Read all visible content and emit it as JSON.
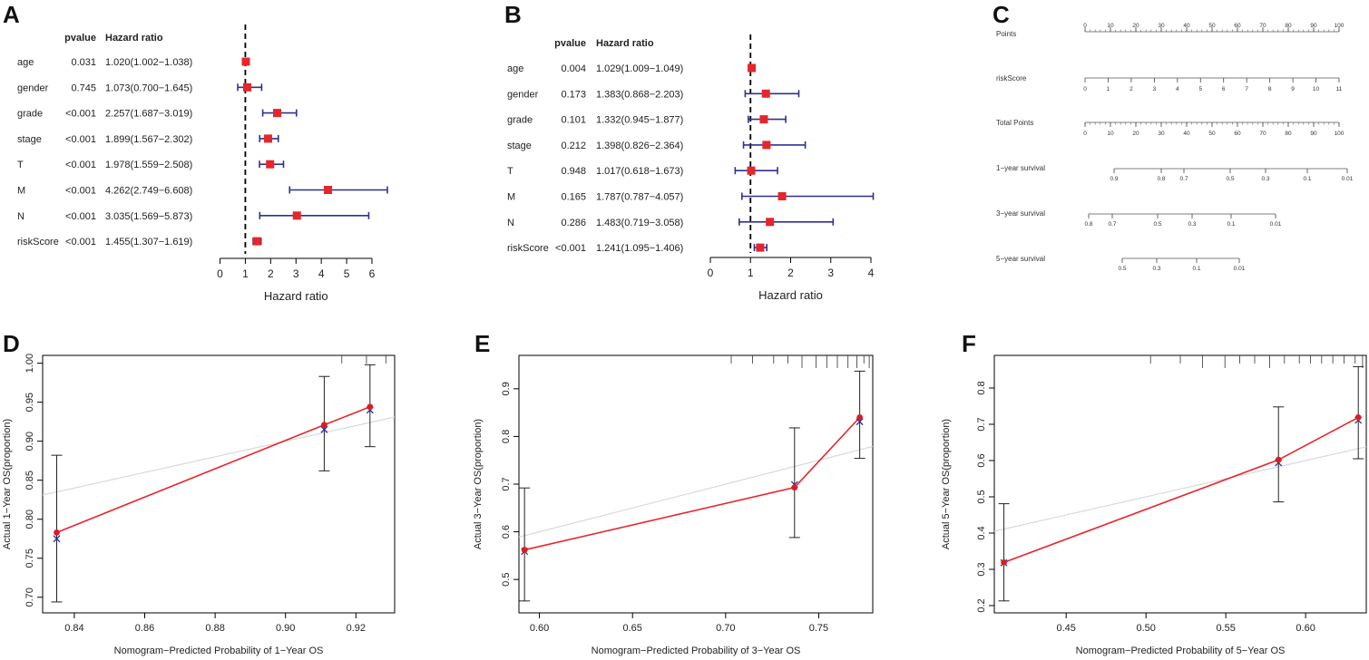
{
  "figure": {
    "forests": [
      {
        "panel": "A",
        "header_pvalue": "pvalue",
        "header_hr": "Hazard ratio",
        "xlabel": "Hazard ratio",
        "rows": [
          {
            "name": "age",
            "pvalue": "0.031",
            "hr_text": "1.020(1.002−1.038)"
          },
          {
            "name": "gender",
            "pvalue": "0.745",
            "hr_text": "1.073(0.700−1.645)"
          },
          {
            "name": "grade",
            "pvalue": "<0.001",
            "hr_text": "2.257(1.687−3.019)"
          },
          {
            "name": "stage",
            "pvalue": "<0.001",
            "hr_text": "1.899(1.567−2.302)"
          },
          {
            "name": "T",
            "pvalue": "<0.001",
            "hr_text": "1.978(1.559−2.508)"
          },
          {
            "name": "M",
            "pvalue": "<0.001",
            "hr_text": "4.262(2.749−6.608)"
          },
          {
            "name": "N",
            "pvalue": "<0.001",
            "hr_text": "3.035(1.569−5.873)"
          },
          {
            "name": "riskScore",
            "pvalue": "<0.001",
            "hr_text": "1.455(1.307−1.619)"
          }
        ],
        "ticks": [
          "0",
          "1",
          "2",
          "3",
          "4",
          "5",
          "6"
        ]
      },
      {
        "panel": "B",
        "header_pvalue": "pvalue",
        "header_hr": "Hazard ratio",
        "xlabel": "Hazard ratio",
        "rows": [
          {
            "name": "age",
            "pvalue": "0.004",
            "hr_text": "1.029(1.009−1.049)"
          },
          {
            "name": "gender",
            "pvalue": "0.173",
            "hr_text": "1.383(0.868−2.203)"
          },
          {
            "name": "grade",
            "pvalue": "0.101",
            "hr_text": "1.332(0.945−1.877)"
          },
          {
            "name": "stage",
            "pvalue": "0.212",
            "hr_text": "1.398(0.826−2.364)"
          },
          {
            "name": "T",
            "pvalue": "0.948",
            "hr_text": "1.017(0.618−1.673)"
          },
          {
            "name": "M",
            "pvalue": "0.165",
            "hr_text": "1.787(0.787−4.057)"
          },
          {
            "name": "N",
            "pvalue": "0.286",
            "hr_text": "1.483(0.719−3.058)"
          },
          {
            "name": "riskScore",
            "pvalue": "<0.001",
            "hr_text": "1.241(1.095−1.406)"
          }
        ],
        "ticks": [
          "0",
          "1",
          "2",
          "3",
          "4"
        ]
      }
    ],
    "nomogram": {
      "panel": "C",
      "rows": [
        {
          "label": "Points",
          "ticks": [
            "0",
            "10",
            "20",
            "30",
            "40",
            "50",
            "60",
            "70",
            "80",
            "90",
            "100"
          ],
          "labels_above": true
        },
        {
          "label": "riskScore",
          "ticks": [
            "0",
            "1",
            "2",
            "3",
            "4",
            "5",
            "6",
            "7",
            "8",
            "9",
            "10",
            "11"
          ],
          "labels_above": false
        },
        {
          "label": "Total Points",
          "ticks": [
            "0",
            "10",
            "20",
            "30",
            "40",
            "50",
            "60",
            "70",
            "80",
            "90",
            "100"
          ],
          "labels_above": false
        },
        {
          "label": "1−year survival",
          "ticks": [
            "0.9",
            "0.8",
            "0.7",
            "0.5",
            "0.3",
            "0.1",
            "0.01"
          ],
          "labels_above": false
        },
        {
          "label": "3−year survival",
          "ticks": [
            "0.8",
            "0.7",
            "0.5",
            "0.3",
            "0.1",
            "0.01"
          ],
          "labels_above": false
        },
        {
          "label": "5−year survival",
          "ticks": [
            "0.5",
            "0.3",
            "0.1",
            "0.01"
          ],
          "labels_above": false
        }
      ]
    },
    "calibrations": [
      {
        "panel": "D",
        "ylabel": "Actual 1−Year OS(proportion)",
        "xlabel": "Nomogram−Predicted Probability of 1−Year OS",
        "xticks": [
          "0.84",
          "0.86",
          "0.88",
          "0.90",
          "0.92"
        ],
        "yticks": [
          "0.70",
          "0.75",
          "0.80",
          "0.85",
          "0.90",
          "0.95",
          "1.00"
        ]
      },
      {
        "panel": "E",
        "ylabel": "Actual 3−Year OS(proportion)",
        "xlabel": "Nomogram−Predicted Probability of 3−Year OS",
        "xticks": [
          "0.60",
          "0.65",
          "0.70",
          "0.75"
        ],
        "yticks": [
          "0.5",
          "0.6",
          "0.7",
          "0.8",
          "0.9"
        ]
      },
      {
        "panel": "F",
        "ylabel": "Actual 5−Year OS(proportion)",
        "xlabel": "Nomogram−Predicted Probability of 5−Year OS",
        "xticks": [
          "0.45",
          "0.50",
          "0.55",
          "0.60"
        ],
        "yticks": [
          "0.2",
          "0.3",
          "0.4",
          "0.5",
          "0.6",
          "0.7",
          "0.8"
        ]
      }
    ]
  },
  "chart_data": [
    {
      "type": "forest",
      "title": "A",
      "xlabel": "Hazard ratio",
      "xlim": [
        0,
        6
      ],
      "categories": [
        "age",
        "gender",
        "grade",
        "stage",
        "T",
        "M",
        "N",
        "riskScore"
      ],
      "hr": [
        1.02,
        1.073,
        2.257,
        1.899,
        1.978,
        4.262,
        3.035,
        1.455
      ],
      "lower": [
        1.002,
        0.7,
        1.687,
        1.567,
        1.559,
        2.749,
        1.569,
        1.307
      ],
      "upper": [
        1.038,
        1.645,
        3.019,
        2.302,
        2.508,
        6.608,
        5.873,
        1.619
      ],
      "reference": 1
    },
    {
      "type": "forest",
      "title": "B",
      "xlabel": "Hazard ratio",
      "xlim": [
        0,
        4
      ],
      "categories": [
        "age",
        "gender",
        "grade",
        "stage",
        "T",
        "M",
        "N",
        "riskScore"
      ],
      "hr": [
        1.029,
        1.383,
        1.332,
        1.398,
        1.017,
        1.787,
        1.483,
        1.241
      ],
      "lower": [
        1.009,
        0.868,
        0.945,
        0.826,
        0.618,
        0.787,
        0.719,
        1.095
      ],
      "upper": [
        1.049,
        2.203,
        1.877,
        2.364,
        1.673,
        4.057,
        3.058,
        1.406
      ],
      "reference": 1
    },
    {
      "type": "nomogram",
      "title": "C",
      "scales": [
        {
          "name": "Points",
          "range": [
            0,
            100
          ]
        },
        {
          "name": "riskScore",
          "range": [
            0,
            11
          ]
        },
        {
          "name": "Total Points",
          "range": [
            0,
            100
          ]
        },
        {
          "name": "1-year survival",
          "values": [
            0.9,
            0.8,
            0.7,
            0.5,
            0.3,
            0.1,
            0.01
          ]
        },
        {
          "name": "3-year survival",
          "values": [
            0.8,
            0.7,
            0.5,
            0.3,
            0.1,
            0.01
          ]
        },
        {
          "name": "5-year survival",
          "values": [
            0.5,
            0.3,
            0.1,
            0.01
          ]
        }
      ]
    },
    {
      "type": "line",
      "title": "D",
      "xlabel": "Nomogram−Predicted Probability of 1−Year OS",
      "ylabel": "Actual 1−Year OS(proportion)",
      "xlim": [
        0.831,
        0.931
      ],
      "ylim": [
        0.68,
        1.01
      ],
      "series": [
        {
          "name": "observed",
          "x": [
            0.835,
            0.911,
            0.924
          ],
          "values": [
            0.783,
            0.921,
            0.944
          ],
          "ci_low": [
            0.694,
            0.862,
            0.893
          ],
          "ci_high": [
            0.882,
            0.983,
            0.998
          ]
        },
        {
          "name": "bias-corrected",
          "x": [
            0.835,
            0.911,
            0.924
          ],
          "values": [
            0.775,
            0.915,
            0.94
          ]
        },
        {
          "name": "ideal",
          "x": [
            0.831,
            0.931
          ],
          "values": [
            0.831,
            0.931
          ]
        }
      ]
    },
    {
      "type": "line",
      "title": "E",
      "xlabel": "Nomogram−Predicted Probability of 3−Year OS",
      "ylabel": "Actual 3−Year OS(proportion)",
      "xlim": [
        0.589,
        0.779
      ],
      "ylim": [
        0.43,
        0.97
      ],
      "series": [
        {
          "name": "observed",
          "x": [
            0.592,
            0.737,
            0.772
          ],
          "values": [
            0.562,
            0.693,
            0.84
          ],
          "ci_low": [
            0.455,
            0.588,
            0.754
          ],
          "ci_high": [
            0.692,
            0.818,
            0.937
          ]
        },
        {
          "name": "bias-corrected",
          "x": [
            0.592,
            0.737,
            0.772
          ],
          "values": [
            0.559,
            0.699,
            0.831
          ]
        },
        {
          "name": "ideal",
          "x": [
            0.589,
            0.779
          ],
          "values": [
            0.589,
            0.779
          ]
        }
      ]
    },
    {
      "type": "line",
      "title": "F",
      "xlabel": "Nomogram−Predicted Probability of 5−Year OS",
      "ylabel": "Actual 5−Year OS(proportion)",
      "xlim": [
        0.405,
        0.638
      ],
      "ylim": [
        0.18,
        0.89
      ],
      "series": [
        {
          "name": "observed",
          "x": [
            0.411,
            0.583,
            0.633
          ],
          "values": [
            0.319,
            0.602,
            0.719
          ],
          "ci_low": [
            0.213,
            0.486,
            0.605
          ],
          "ci_high": [
            0.481,
            0.748,
            0.859
          ]
        },
        {
          "name": "bias-corrected",
          "x": [
            0.411,
            0.583,
            0.633
          ],
          "values": [
            0.318,
            0.594,
            0.711
          ]
        },
        {
          "name": "ideal",
          "x": [
            0.405,
            0.638
          ],
          "values": [
            0.405,
            0.638
          ]
        }
      ]
    }
  ]
}
